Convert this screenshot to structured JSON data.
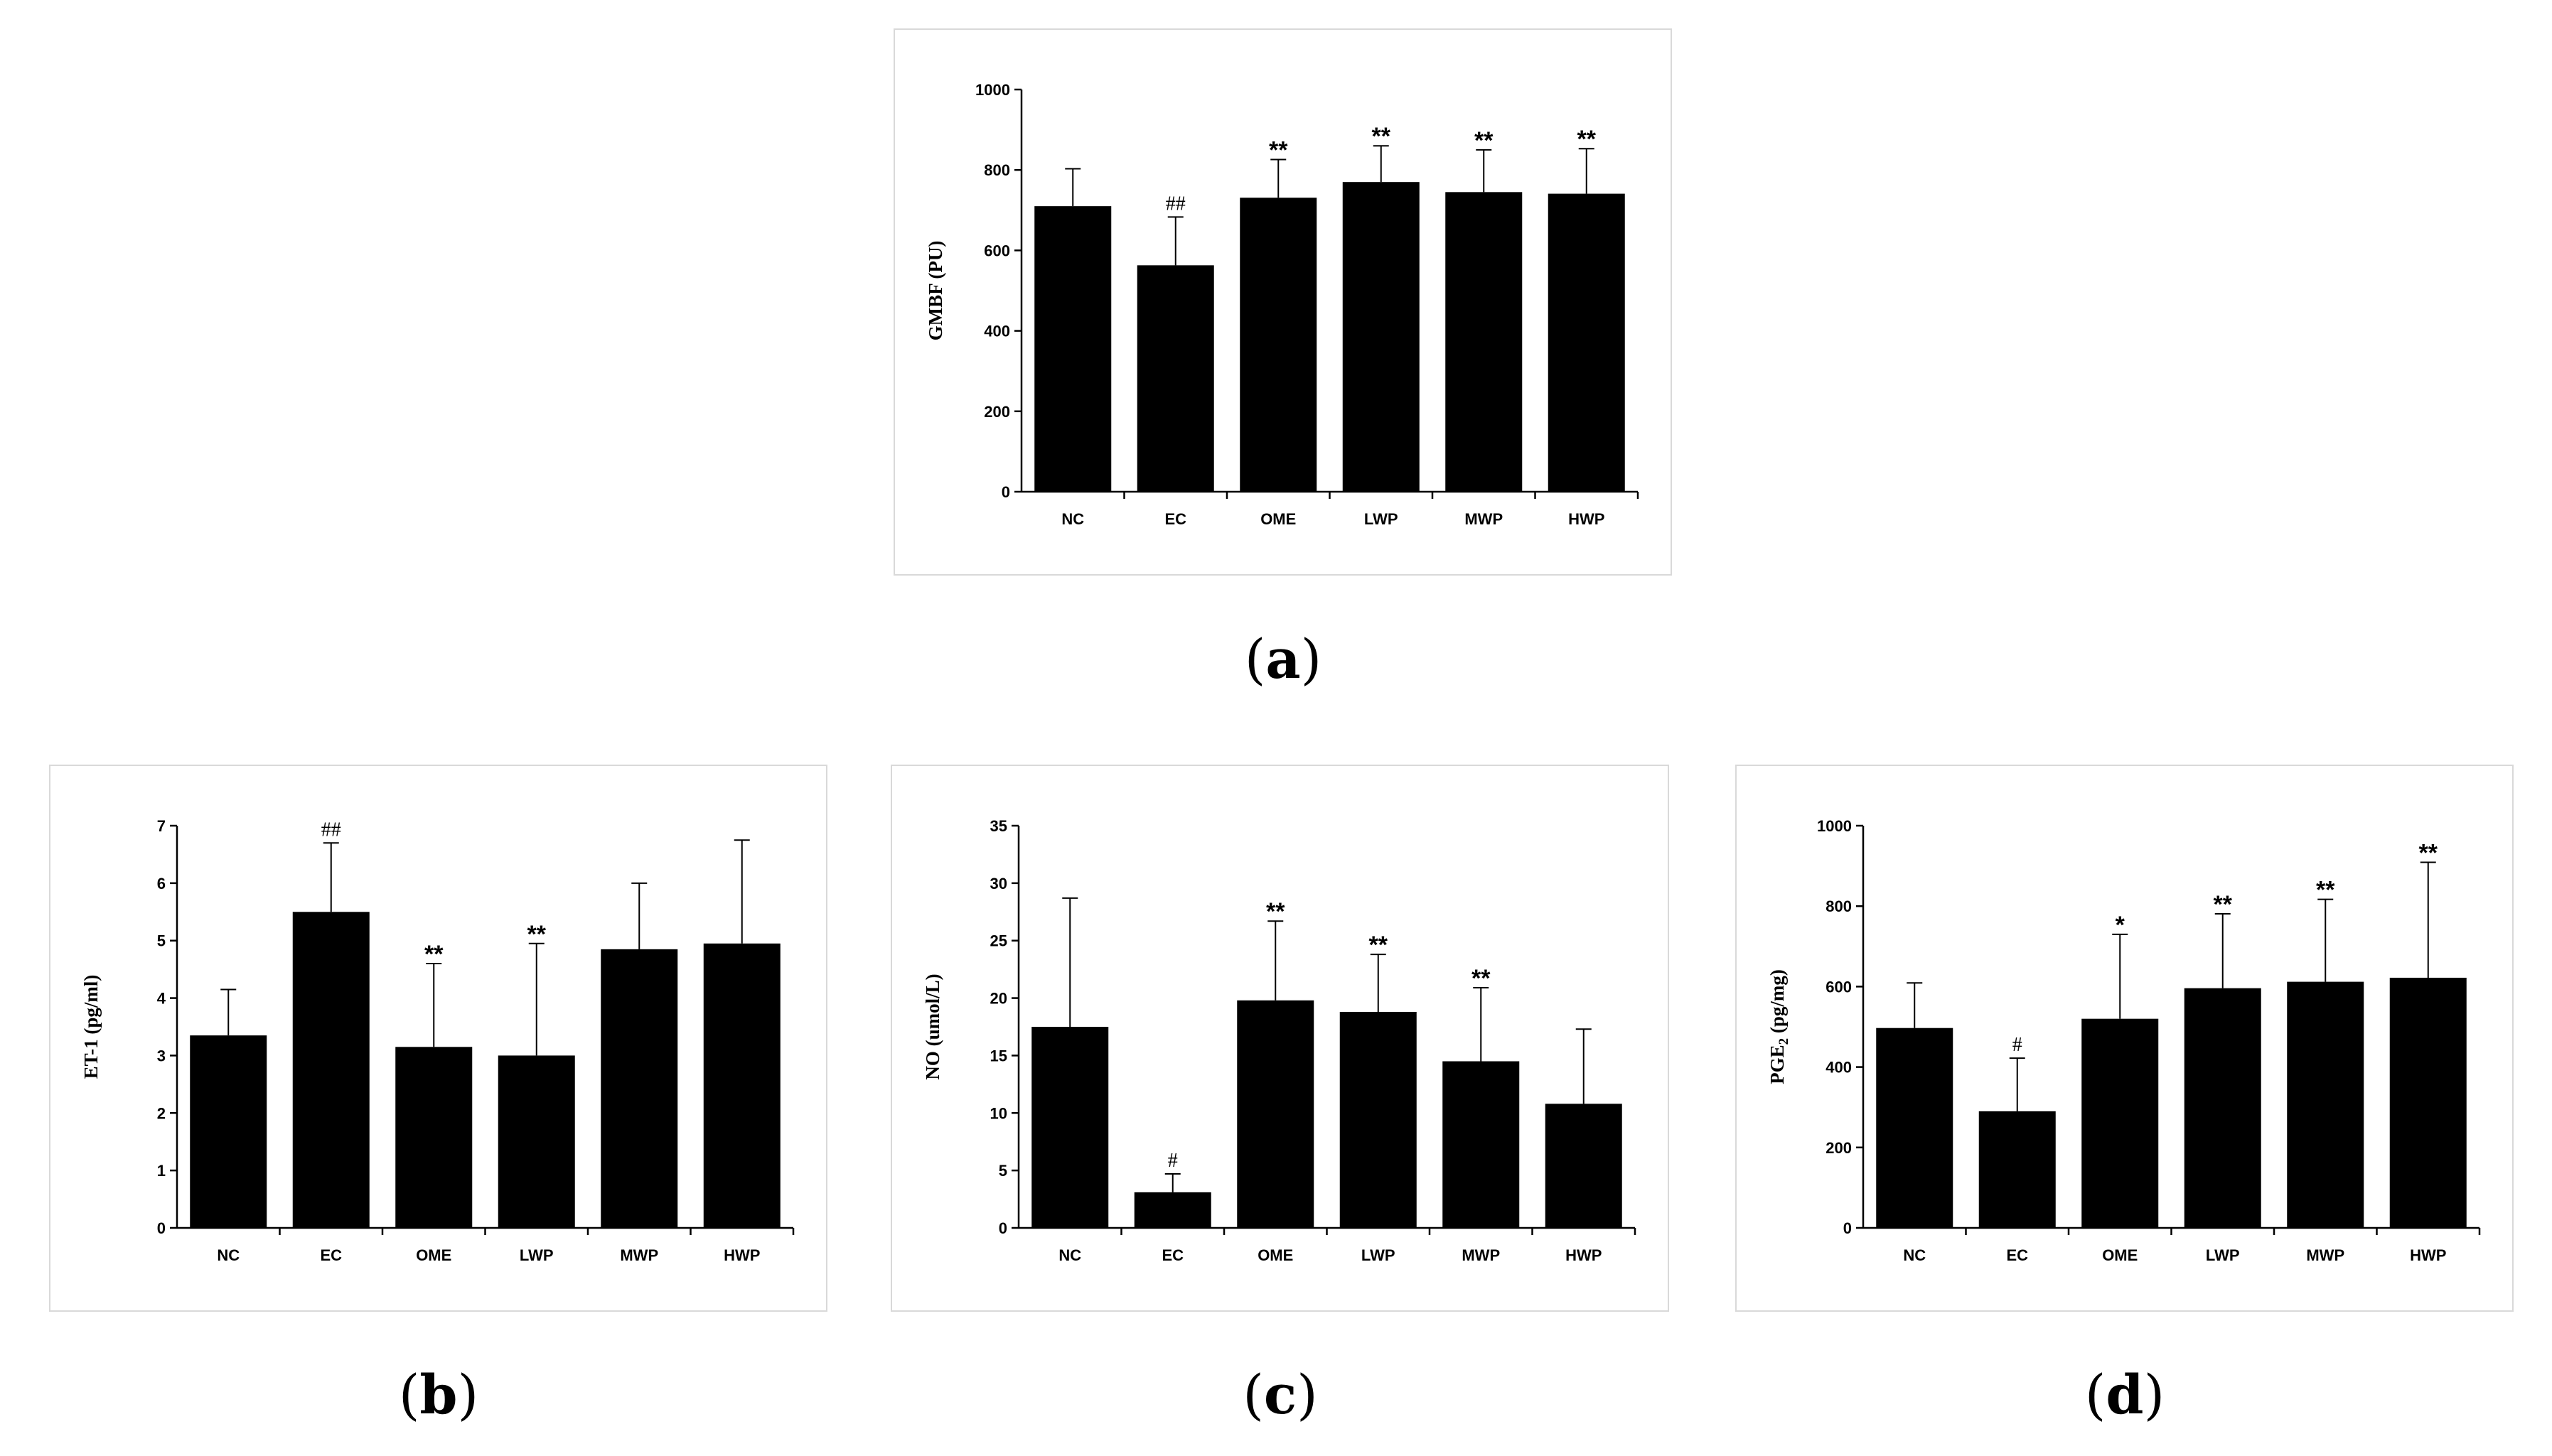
{
  "chart_data": [
    {
      "type": "bar",
      "caption": "a",
      "ylabel": "GMBF (PU)",
      "ylabel_sub": "",
      "ylabel_suffix": "",
      "ylim": [
        0,
        1000
      ],
      "yticks": [
        0,
        200,
        400,
        600,
        800,
        1000
      ],
      "categories": [
        "NC",
        "EC",
        "OME",
        "LWP",
        "MWP",
        "HWP"
      ],
      "values": [
        710,
        563,
        731,
        770,
        745,
        741
      ],
      "errors": [
        93,
        120,
        95,
        90,
        105,
        112
      ],
      "annotations": [
        "",
        "##",
        "**",
        "**",
        "**",
        "**"
      ],
      "bar_color": "#000000"
    },
    {
      "type": "bar",
      "caption": "b",
      "ylabel": "ET-1 (pg/ml)",
      "ylabel_sub": "",
      "ylabel_suffix": "",
      "ylim": [
        0,
        7
      ],
      "yticks": [
        0,
        1,
        2,
        3,
        4,
        5,
        6,
        7
      ],
      "categories": [
        "NC",
        "EC",
        "OME",
        "LWP",
        "MWP",
        "HWP"
      ],
      "values": [
        3.35,
        5.5,
        3.15,
        3.0,
        4.85,
        4.95
      ],
      "errors": [
        0.8,
        1.2,
        1.45,
        1.95,
        1.15,
        1.8
      ],
      "annotations": [
        "",
        "##",
        "**",
        "**",
        "",
        ""
      ],
      "bar_color": "#000000"
    },
    {
      "type": "bar",
      "caption": "c",
      "ylabel": "NO (umol/L)",
      "ylabel_sub": "",
      "ylabel_suffix": "",
      "ylim": [
        0,
        35
      ],
      "yticks": [
        0,
        5,
        10,
        15,
        20,
        25,
        30,
        35
      ],
      "categories": [
        "NC",
        "EC",
        "OME",
        "LWP",
        "MWP",
        "HWP"
      ],
      "values": [
        17.5,
        3.1,
        19.8,
        18.8,
        14.5,
        10.8
      ],
      "errors": [
        11.2,
        1.6,
        6.9,
        5.0,
        6.4,
        6.5
      ],
      "annotations": [
        "",
        "#",
        "**",
        "**",
        "**",
        ""
      ],
      "bar_color": "#000000"
    },
    {
      "type": "bar",
      "caption": "d",
      "ylabel": "PGE",
      "ylabel_sub": "2",
      "ylabel_suffix": " (pg/mg)",
      "ylim": [
        0,
        1000
      ],
      "yticks": [
        0,
        200,
        400,
        600,
        800,
        1000
      ],
      "categories": [
        "NC",
        "EC",
        "OME",
        "LWP",
        "MWP",
        "HWP"
      ],
      "values": [
        497,
        290,
        520,
        596,
        612,
        622
      ],
      "errors": [
        112,
        132,
        210,
        185,
        205,
        287
      ],
      "annotations": [
        "",
        "#",
        "*",
        "**",
        "**",
        "**"
      ],
      "bar_color": "#000000"
    }
  ]
}
